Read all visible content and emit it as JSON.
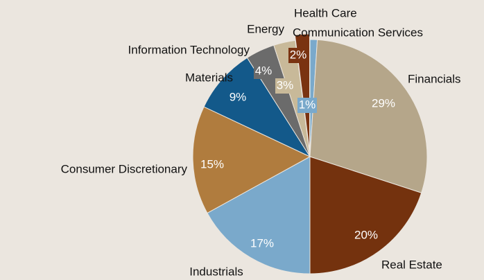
{
  "chart_data": {
    "type": "pie",
    "categories": [
      "Communication Services",
      "Financials",
      "Real Estate",
      "Industrials",
      "Consumer Discretionary",
      "Materials",
      "Information Technology",
      "Energy",
      "Health Care"
    ],
    "values": [
      1,
      29,
      20,
      17,
      15,
      9,
      4,
      3,
      2
    ],
    "value_labels": [
      "1%",
      "29%",
      "20%",
      "17%",
      "15%",
      "9%",
      "4%",
      "3%",
      "2%"
    ],
    "colors": [
      "#7aa9cb",
      "#b5a68a",
      "#74320e",
      "#7aa9cb",
      "#b07c3e",
      "#13598a",
      "#6b6b6b",
      "#c8b999",
      "#7a3311"
    ]
  }
}
